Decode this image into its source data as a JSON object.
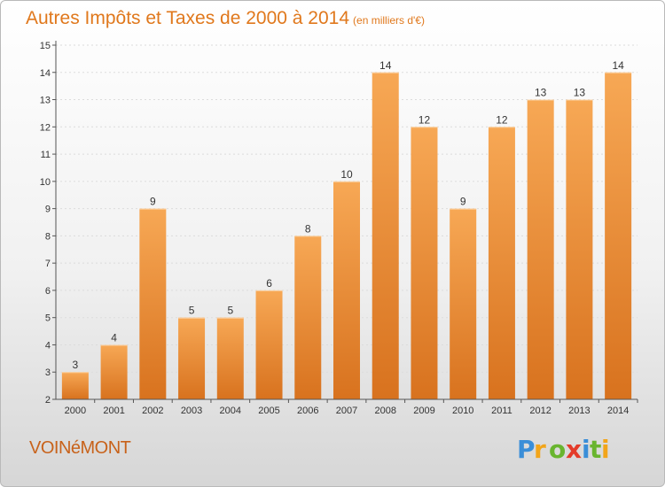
{
  "header": {
    "title": "Autres Impôts et Taxes de 2000 à 2014",
    "subtitle": "(en milliers d'€)"
  },
  "footer": {
    "commune": "VOINéMONT",
    "logo_text": "Proxiti"
  },
  "colors": {
    "title": "#e0781c",
    "bar_light": "#f6a552",
    "bar_dark": "#d97420",
    "axis": "#333333"
  },
  "chart_data": {
    "type": "bar",
    "title": "Autres Impôts et Taxes de 2000 à 2014",
    "subtitle": "(en milliers d'€)",
    "xlabel": "",
    "ylabel": "",
    "categories": [
      "2000",
      "2001",
      "2002",
      "2003",
      "2004",
      "2005",
      "2006",
      "2007",
      "2008",
      "2009",
      "2010",
      "2011",
      "2012",
      "2013",
      "2014"
    ],
    "values": [
      3,
      4,
      9,
      5,
      5,
      6,
      8,
      10,
      14,
      12,
      9,
      12,
      13,
      13,
      14
    ],
    "data_labels": [
      "3",
      "4",
      "9",
      "5",
      "5",
      "6",
      "8",
      "10",
      "14",
      "12",
      "9",
      "12",
      "13",
      "13",
      "14"
    ],
    "ylim": [
      2,
      15
    ],
    "yticks": [
      "2",
      "3",
      "4",
      "5",
      "6",
      "7",
      "8",
      "9",
      "10",
      "11",
      "12",
      "13",
      "14",
      "15"
    ],
    "grid": true,
    "legend": "none"
  }
}
